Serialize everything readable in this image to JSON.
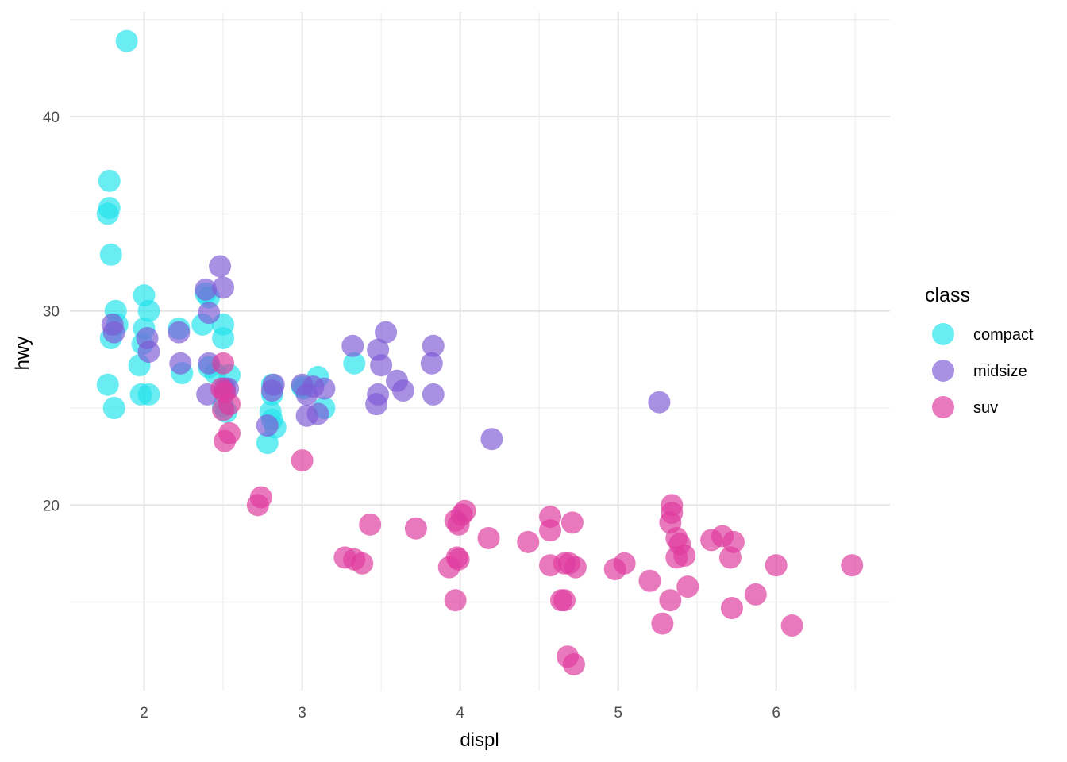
{
  "chart_data": {
    "type": "scatter",
    "title": "",
    "xlabel": "displ",
    "ylabel": "hwy",
    "xlim": [
      1.53,
      6.72
    ],
    "ylim": [
      10.45,
      45.4
    ],
    "x_ticks": [
      2,
      3,
      4,
      5,
      6
    ],
    "y_ticks": [
      20,
      30,
      40
    ],
    "grid": true,
    "legend": {
      "title": "class",
      "placement": "right"
    },
    "series": [
      {
        "name": "compact",
        "color": "#22E3EC",
        "points": [
          [
            1.89,
            43.9
          ],
          [
            1.78,
            36.7
          ],
          [
            1.78,
            35.3
          ],
          [
            1.77,
            35.0
          ],
          [
            1.79,
            32.9
          ],
          [
            1.82,
            30.0
          ],
          [
            1.79,
            28.6
          ],
          [
            1.83,
            29.3
          ],
          [
            1.77,
            26.2
          ],
          [
            1.81,
            25.0
          ],
          [
            2.0,
            30.8
          ],
          [
            2.03,
            30.0
          ],
          [
            2.0,
            29.1
          ],
          [
            1.99,
            28.3
          ],
          [
            1.97,
            27.2
          ],
          [
            1.98,
            25.7
          ],
          [
            2.03,
            25.7
          ],
          [
            2.22,
            29.1
          ],
          [
            2.24,
            26.8
          ],
          [
            2.37,
            29.3
          ],
          [
            2.39,
            30.9
          ],
          [
            2.41,
            30.7
          ],
          [
            2.5,
            29.3
          ],
          [
            2.5,
            28.6
          ],
          [
            2.41,
            27.1
          ],
          [
            2.45,
            26.8
          ],
          [
            2.54,
            26.7
          ],
          [
            2.5,
            25.1
          ],
          [
            2.52,
            24.8
          ],
          [
            2.81,
            26.2
          ],
          [
            2.81,
            25.7
          ],
          [
            2.8,
            24.8
          ],
          [
            2.81,
            24.4
          ],
          [
            2.83,
            24.0
          ],
          [
            2.78,
            23.2
          ],
          [
            3.0,
            26.1
          ],
          [
            3.01,
            26.0
          ],
          [
            3.1,
            26.6
          ],
          [
            3.14,
            25.0
          ],
          [
            3.33,
            27.3
          ]
        ]
      },
      {
        "name": "midsize",
        "color": "#7F5CD6",
        "points": [
          [
            1.8,
            29.3
          ],
          [
            1.81,
            28.9
          ],
          [
            2.02,
            28.6
          ],
          [
            2.03,
            27.9
          ],
          [
            2.22,
            28.9
          ],
          [
            2.23,
            27.3
          ],
          [
            2.39,
            31.1
          ],
          [
            2.41,
            29.9
          ],
          [
            2.48,
            32.3
          ],
          [
            2.5,
            31.2
          ],
          [
            2.41,
            27.3
          ],
          [
            2.4,
            25.7
          ],
          [
            2.51,
            26.0
          ],
          [
            2.53,
            26.0
          ],
          [
            2.82,
            26.2
          ],
          [
            2.81,
            25.9
          ],
          [
            2.78,
            24.1
          ],
          [
            3.0,
            26.2
          ],
          [
            3.03,
            25.7
          ],
          [
            3.07,
            26.1
          ],
          [
            3.14,
            26.0
          ],
          [
            3.03,
            24.6
          ],
          [
            3.1,
            24.7
          ],
          [
            3.32,
            28.2
          ],
          [
            3.48,
            28.0
          ],
          [
            3.53,
            28.9
          ],
          [
            3.5,
            27.2
          ],
          [
            3.48,
            25.7
          ],
          [
            3.47,
            25.2
          ],
          [
            3.6,
            26.4
          ],
          [
            3.64,
            25.9
          ],
          [
            3.83,
            28.2
          ],
          [
            3.82,
            27.3
          ],
          [
            3.83,
            25.7
          ],
          [
            4.2,
            23.4
          ],
          [
            5.26,
            25.3
          ]
        ]
      },
      {
        "name": "suv",
        "color": "#DE3A9E",
        "points": [
          [
            2.5,
            27.3
          ],
          [
            2.49,
            26.0
          ],
          [
            2.51,
            25.8
          ],
          [
            2.5,
            24.9
          ],
          [
            2.54,
            25.2
          ],
          [
            2.54,
            23.7
          ],
          [
            2.51,
            23.3
          ],
          [
            3.0,
            22.3
          ],
          [
            2.74,
            20.4
          ],
          [
            2.72,
            20.0
          ],
          [
            3.27,
            17.3
          ],
          [
            3.33,
            17.2
          ],
          [
            3.38,
            17.0
          ],
          [
            3.43,
            19.0
          ],
          [
            3.72,
            18.8
          ],
          [
            3.93,
            16.8
          ],
          [
            3.98,
            17.3
          ],
          [
            3.99,
            17.2
          ],
          [
            3.97,
            15.1
          ],
          [
            3.97,
            19.2
          ],
          [
            3.99,
            19.0
          ],
          [
            4.01,
            19.5
          ],
          [
            4.03,
            19.7
          ],
          [
            4.18,
            18.3
          ],
          [
            4.43,
            18.1
          ],
          [
            4.57,
            19.4
          ],
          [
            4.57,
            18.7
          ],
          [
            4.71,
            19.1
          ],
          [
            4.57,
            16.9
          ],
          [
            4.66,
            17.0
          ],
          [
            4.69,
            17.0
          ],
          [
            4.73,
            16.8
          ],
          [
            4.64,
            15.1
          ],
          [
            4.66,
            15.1
          ],
          [
            4.68,
            12.2
          ],
          [
            4.72,
            11.8
          ],
          [
            4.98,
            16.7
          ],
          [
            5.04,
            17.0
          ],
          [
            5.2,
            16.1
          ],
          [
            5.34,
            20.0
          ],
          [
            5.34,
            19.6
          ],
          [
            5.33,
            19.1
          ],
          [
            5.37,
            18.3
          ],
          [
            5.39,
            18.0
          ],
          [
            5.37,
            17.3
          ],
          [
            5.42,
            17.4
          ],
          [
            5.44,
            15.8
          ],
          [
            5.33,
            15.1
          ],
          [
            5.28,
            13.9
          ],
          [
            5.59,
            18.2
          ],
          [
            5.66,
            18.4
          ],
          [
            5.73,
            18.1
          ],
          [
            5.71,
            17.3
          ],
          [
            5.72,
            14.7
          ],
          [
            5.87,
            15.4
          ],
          [
            6.0,
            16.9
          ],
          [
            6.1,
            13.8
          ],
          [
            6.48,
            16.9
          ]
        ]
      }
    ]
  }
}
